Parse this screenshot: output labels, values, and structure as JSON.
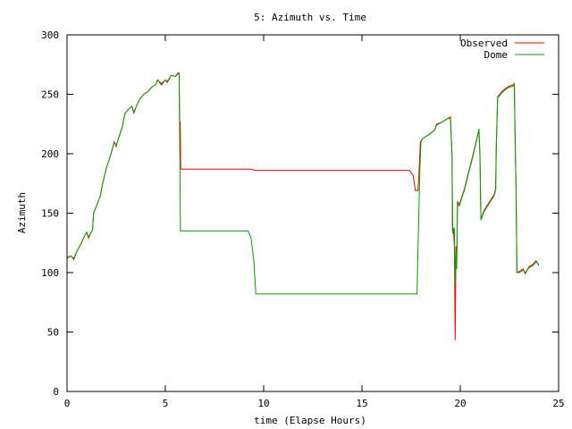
{
  "chart_data": {
    "type": "line",
    "title": "5: Azimuth vs. Time",
    "xlabel": "time (Elapse Hours)",
    "ylabel": "Azimuth",
    "xlim": [
      0,
      25
    ],
    "ylim": [
      0,
      300
    ],
    "xticks": [
      0,
      5,
      10,
      15,
      20,
      25
    ],
    "yticks": [
      0,
      50,
      100,
      150,
      200,
      250,
      300
    ],
    "grid": false,
    "legend_position": "top-right",
    "series": [
      {
        "name": "Observed",
        "color": "#ff0000",
        "points": [
          [
            0.0,
            112
          ],
          [
            0.2,
            114
          ],
          [
            0.35,
            111
          ],
          [
            0.5,
            118
          ],
          [
            0.7,
            124
          ],
          [
            0.9,
            131
          ],
          [
            1.0,
            134
          ],
          [
            1.1,
            129
          ],
          [
            1.2,
            133
          ],
          [
            1.3,
            136
          ],
          [
            1.35,
            150
          ],
          [
            1.5,
            156
          ],
          [
            1.7,
            165
          ],
          [
            1.8,
            174
          ],
          [
            2.0,
            188
          ],
          [
            2.2,
            198
          ],
          [
            2.3,
            204
          ],
          [
            2.4,
            210
          ],
          [
            2.5,
            206
          ],
          [
            2.6,
            212
          ],
          [
            2.8,
            222
          ],
          [
            2.95,
            234
          ],
          [
            3.1,
            237
          ],
          [
            3.3,
            240
          ],
          [
            3.4,
            234
          ],
          [
            3.55,
            241
          ],
          [
            3.7,
            246
          ],
          [
            3.9,
            250
          ],
          [
            4.1,
            252
          ],
          [
            4.3,
            256
          ],
          [
            4.5,
            258
          ],
          [
            4.6,
            262
          ],
          [
            4.8,
            258
          ],
          [
            5.0,
            262
          ],
          [
            5.1,
            260
          ],
          [
            5.3,
            266
          ],
          [
            5.5,
            265
          ],
          [
            5.65,
            268
          ],
          [
            5.7,
            268
          ],
          [
            5.74,
            203
          ],
          [
            5.76,
            227
          ],
          [
            5.78,
            187
          ],
          [
            6.5,
            187
          ],
          [
            7.5,
            187
          ],
          [
            8.5,
            187
          ],
          [
            9.3,
            187
          ],
          [
            9.6,
            186
          ],
          [
            10.5,
            186
          ],
          [
            12,
            186
          ],
          [
            14,
            186
          ],
          [
            16,
            186
          ],
          [
            17.4,
            186
          ],
          [
            17.6,
            182
          ],
          [
            17.72,
            169
          ],
          [
            17.85,
            169
          ],
          [
            17.92,
            190
          ],
          [
            17.97,
            210
          ],
          [
            18.1,
            213
          ],
          [
            18.4,
            216
          ],
          [
            18.7,
            220
          ],
          [
            18.8,
            225
          ],
          [
            19.0,
            226
          ],
          [
            19.2,
            228
          ],
          [
            19.4,
            230
          ],
          [
            19.5,
            231
          ],
          [
            19.58,
            199
          ],
          [
            19.6,
            135
          ],
          [
            19.65,
            137
          ],
          [
            19.7,
            122
          ],
          [
            19.74,
            43
          ],
          [
            19.78,
            122
          ],
          [
            19.82,
            110
          ],
          [
            19.86,
            160
          ],
          [
            19.95,
            157
          ],
          [
            20.2,
            170
          ],
          [
            20.4,
            183
          ],
          [
            20.6,
            196
          ],
          [
            20.8,
            210
          ],
          [
            20.95,
            220
          ],
          [
            21.0,
            200
          ],
          [
            21.05,
            145
          ],
          [
            21.2,
            152
          ],
          [
            21.5,
            160
          ],
          [
            21.7,
            165
          ],
          [
            21.8,
            170
          ],
          [
            21.83,
            207
          ],
          [
            21.9,
            248
          ],
          [
            22.1,
            252
          ],
          [
            22.3,
            255
          ],
          [
            22.5,
            257
          ],
          [
            22.7,
            258
          ],
          [
            22.75,
            259
          ],
          [
            22.8,
            200
          ],
          [
            22.83,
            178
          ],
          [
            22.88,
            100
          ],
          [
            23.0,
            101
          ],
          [
            23.2,
            103
          ],
          [
            23.3,
            99
          ],
          [
            23.5,
            105
          ],
          [
            23.7,
            107
          ],
          [
            23.85,
            110
          ],
          [
            24.0,
            106
          ]
        ]
      },
      {
        "name": "Dome",
        "color": "#00a000",
        "points": [
          [
            0.0,
            113
          ],
          [
            0.2,
            114
          ],
          [
            0.35,
            112
          ],
          [
            0.5,
            118
          ],
          [
            0.7,
            124
          ],
          [
            0.9,
            131
          ],
          [
            1.0,
            134
          ],
          [
            1.1,
            130
          ],
          [
            1.2,
            133
          ],
          [
            1.3,
            136
          ],
          [
            1.35,
            150
          ],
          [
            1.5,
            156
          ],
          [
            1.7,
            165
          ],
          [
            1.8,
            174
          ],
          [
            2.0,
            188
          ],
          [
            2.2,
            198
          ],
          [
            2.3,
            204
          ],
          [
            2.4,
            210
          ],
          [
            2.5,
            207
          ],
          [
            2.6,
            212
          ],
          [
            2.8,
            222
          ],
          [
            2.95,
            234
          ],
          [
            3.1,
            237
          ],
          [
            3.3,
            240
          ],
          [
            3.4,
            235
          ],
          [
            3.55,
            241
          ],
          [
            3.7,
            246
          ],
          [
            3.9,
            250
          ],
          [
            4.1,
            252
          ],
          [
            4.3,
            256
          ],
          [
            4.5,
            258
          ],
          [
            4.6,
            262
          ],
          [
            4.8,
            259
          ],
          [
            5.0,
            262
          ],
          [
            5.1,
            261
          ],
          [
            5.3,
            266
          ],
          [
            5.5,
            265
          ],
          [
            5.65,
            267
          ],
          [
            5.7,
            267
          ],
          [
            5.77,
            135
          ],
          [
            6.5,
            135
          ],
          [
            7.5,
            135
          ],
          [
            8.5,
            135
          ],
          [
            9.2,
            135
          ],
          [
            9.35,
            130
          ],
          [
            9.5,
            110
          ],
          [
            9.6,
            82
          ],
          [
            10.5,
            82
          ],
          [
            12,
            82
          ],
          [
            14,
            82
          ],
          [
            16,
            82
          ],
          [
            17.5,
            82
          ],
          [
            17.8,
            82
          ],
          [
            17.85,
            120
          ],
          [
            17.95,
            190
          ],
          [
            18.0,
            210
          ],
          [
            18.1,
            213
          ],
          [
            18.4,
            216
          ],
          [
            18.7,
            220
          ],
          [
            18.8,
            224
          ],
          [
            19.0,
            226
          ],
          [
            19.2,
            228
          ],
          [
            19.4,
            230
          ],
          [
            19.5,
            229
          ],
          [
            19.58,
            198
          ],
          [
            19.62,
            133
          ],
          [
            19.7,
            138
          ],
          [
            19.74,
            90
          ],
          [
            19.78,
            118
          ],
          [
            19.82,
            103
          ],
          [
            19.86,
            158
          ],
          [
            19.95,
            156
          ],
          [
            20.2,
            169
          ],
          [
            20.4,
            182
          ],
          [
            20.6,
            195
          ],
          [
            20.8,
            209
          ],
          [
            20.95,
            221
          ],
          [
            21.0,
            198
          ],
          [
            21.05,
            144
          ],
          [
            21.2,
            151
          ],
          [
            21.5,
            159
          ],
          [
            21.7,
            164
          ],
          [
            21.8,
            169
          ],
          [
            21.83,
            206
          ],
          [
            21.9,
            247
          ],
          [
            22.1,
            251
          ],
          [
            22.3,
            254
          ],
          [
            22.5,
            256
          ],
          [
            22.7,
            257
          ],
          [
            22.75,
            258
          ],
          [
            22.8,
            198
          ],
          [
            22.83,
            177
          ],
          [
            22.88,
            100
          ],
          [
            23.0,
            100
          ],
          [
            23.2,
            102
          ],
          [
            23.3,
            100
          ],
          [
            23.5,
            104
          ],
          [
            23.7,
            106
          ],
          [
            23.85,
            109
          ],
          [
            24.0,
            107
          ]
        ]
      }
    ]
  }
}
